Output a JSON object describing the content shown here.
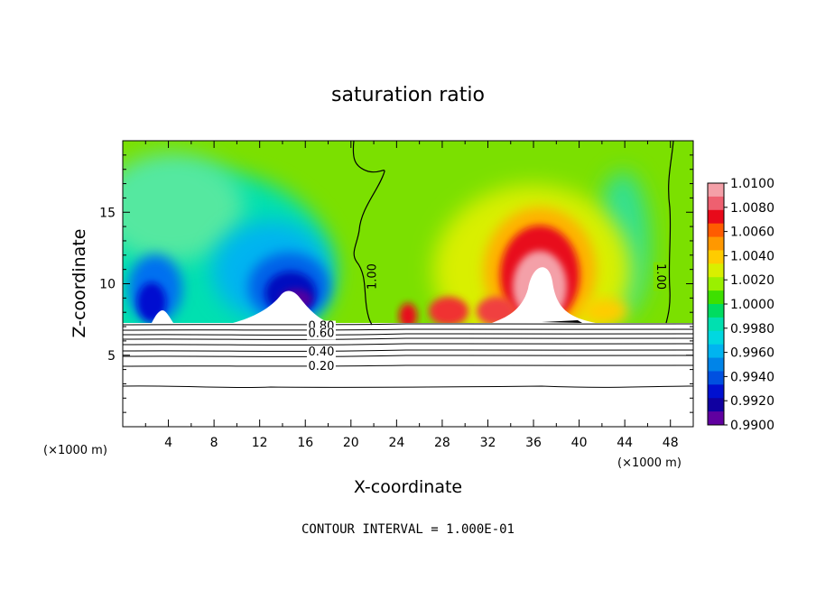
{
  "chart_data": {
    "type": "heatmap",
    "title": "saturation ratio",
    "xlabel": "X-coordinate",
    "ylabel": "Z-coordinate",
    "x_unit": "(×1000 m)",
    "xlim": [
      0,
      50
    ],
    "ylim": [
      0,
      20
    ],
    "x_ticks": [
      4,
      8,
      12,
      16,
      20,
      24,
      28,
      32,
      36,
      40,
      44,
      48
    ],
    "y_ticks": [
      5,
      10,
      15
    ],
    "colorbar": {
      "min": 0.99,
      "max": 1.01,
      "labels": [
        "1.0100",
        "1.0080",
        "1.0060",
        "1.0040",
        "1.0020",
        "1.0000",
        "0.9980",
        "0.9960",
        "0.9940",
        "0.9920",
        "0.9900"
      ],
      "colors": [
        "#f4a0a8",
        "#ee6070",
        "#e80a1a",
        "#ff5c00",
        "#ff9800",
        "#ffcc00",
        "#d9ef00",
        "#9af000",
        "#3ee000",
        "#00dc60",
        "#00e0b0",
        "#00d8e0",
        "#00b4f0",
        "#0084e8",
        "#0050e0",
        "#0010d0",
        "#1000a0",
        "#6000a0"
      ]
    },
    "contours": {
      "interval": "CONTOUR INTERVAL = 1.000E-01",
      "labels": [
        {
          "text": "1.00",
          "x": 21.9,
          "z": 10.5,
          "angle": -90
        },
        {
          "text": "1.00",
          "x": 47.1,
          "z": 10.5,
          "angle": 90
        },
        {
          "text": "0.80",
          "x": 17.4,
          "z": 7.0,
          "angle": 0
        },
        {
          "text": "0.60",
          "x": 17.4,
          "z": 6.5,
          "angle": 0
        },
        {
          "text": "0.40",
          "x": 17.4,
          "z": 5.2,
          "angle": 0
        },
        {
          "text": "0.20",
          "x": 17.4,
          "z": 4.2,
          "angle": 0
        }
      ]
    },
    "colors": {
      "background_field": "#7be000",
      "below_cloud": "#ffffff"
    }
  }
}
